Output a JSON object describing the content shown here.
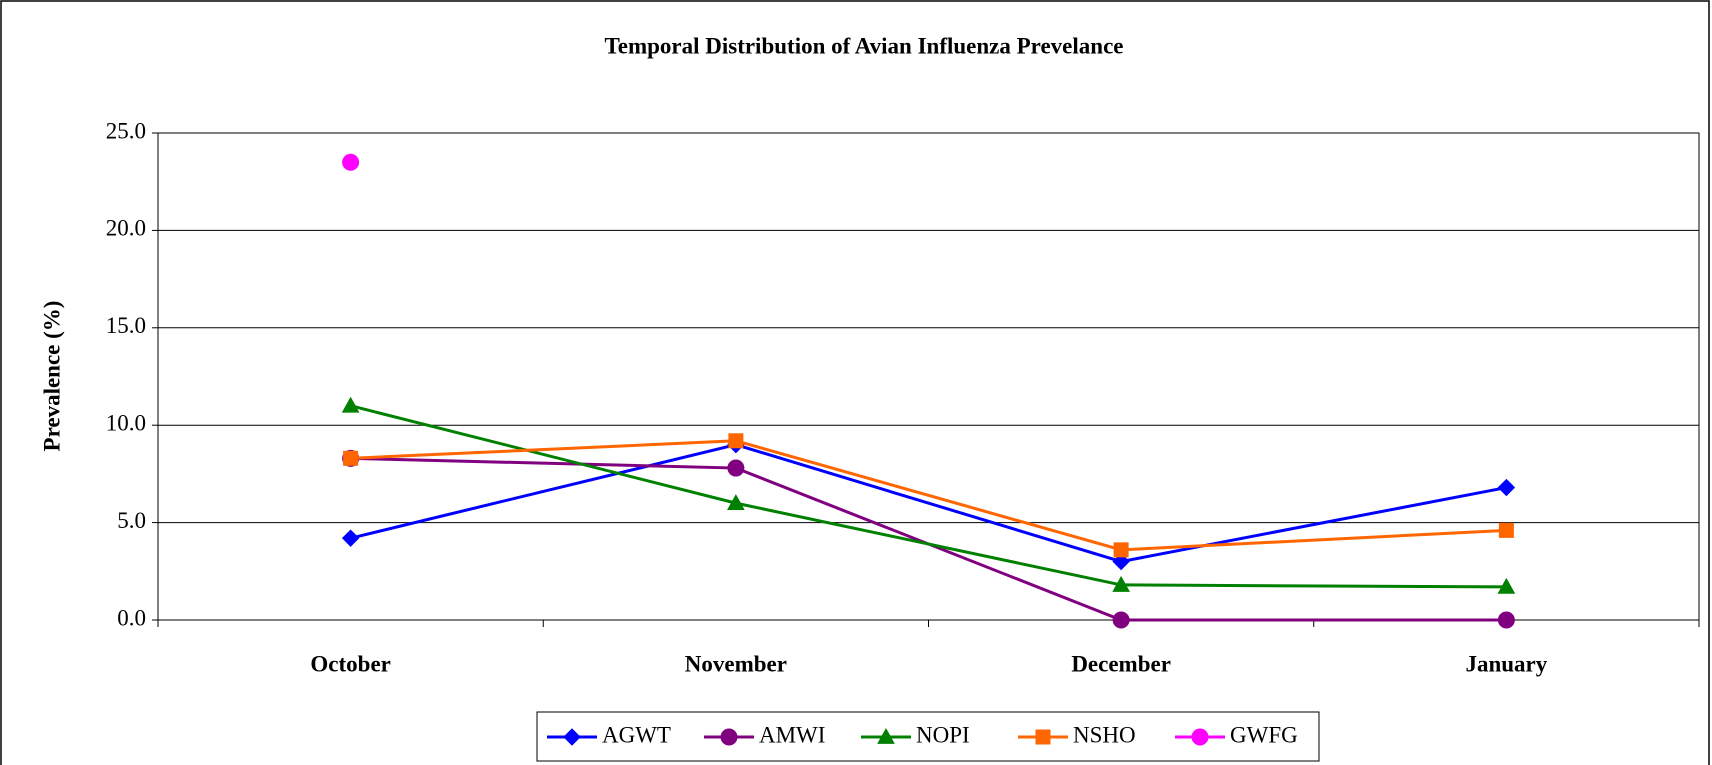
{
  "chart_data": {
    "type": "line",
    "title": "Temporal Distribution of Avian Influenza Prevelance",
    "y_label": "Prevalence (%)",
    "categories": [
      "October",
      "November",
      "December",
      "January"
    ],
    "series": [
      {
        "name": "AGWT",
        "color": "#0000ff",
        "marker": "diamond",
        "values": [
          4.2,
          9.0,
          3.0,
          6.8
        ]
      },
      {
        "name": "AMWI",
        "color": "#800080",
        "marker": "circle",
        "values": [
          8.3,
          7.8,
          0.0,
          0.0
        ]
      },
      {
        "name": "NOPI",
        "color": "#008000",
        "marker": "triangle",
        "values": [
          11.0,
          6.0,
          1.8,
          1.7
        ]
      },
      {
        "name": "NSHO",
        "color": "#ff6600",
        "marker": "square",
        "values": [
          8.3,
          9.2,
          3.6,
          4.6
        ]
      },
      {
        "name": "GWFG",
        "color": "#ff00ff",
        "marker": "circle",
        "values": [
          23.5,
          null,
          null,
          null
        ]
      }
    ],
    "ylim": [
      0,
      25
    ],
    "yticks": [
      {
        "value": 0,
        "label": "0.0"
      },
      {
        "value": 5,
        "label": "5.0"
      },
      {
        "value": 10,
        "label": "10.0"
      },
      {
        "value": 15,
        "label": "15.0"
      },
      {
        "value": 20,
        "label": "20.0"
      },
      {
        "value": 25,
        "label": "25.0"
      }
    ],
    "grid": true,
    "legend": "bottom"
  }
}
